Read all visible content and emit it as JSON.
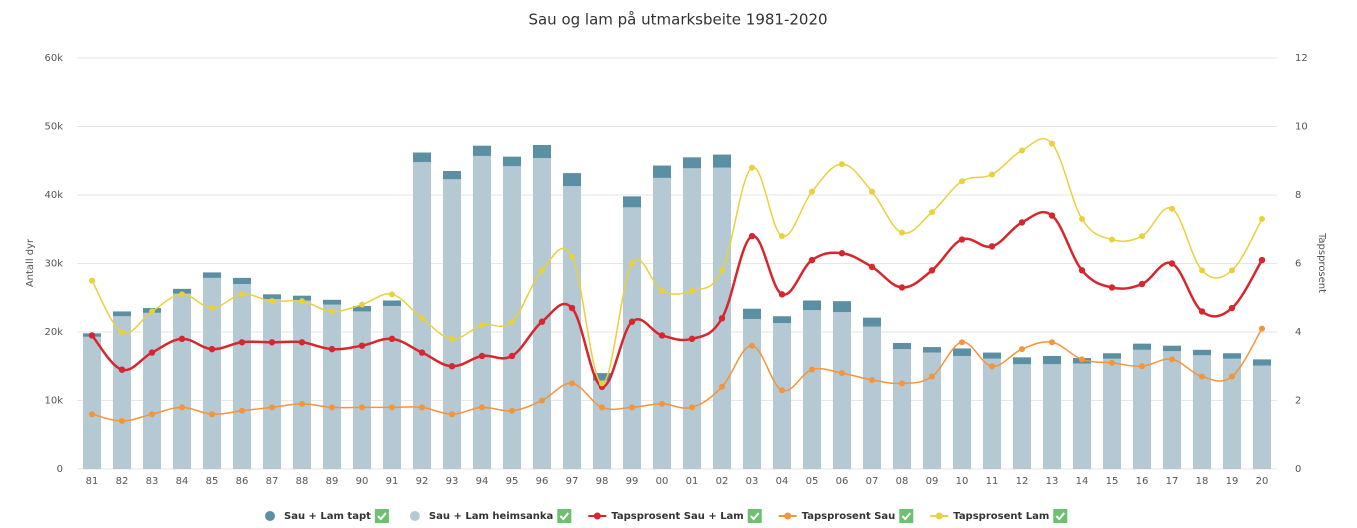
{
  "chart_data": {
    "type": "bar",
    "title": "Sau og lam på utmarksbeite 1981-2020",
    "y_label": "Antall dyr",
    "y2_label": "Tapsprosent",
    "categories": [
      "81",
      "82",
      "83",
      "84",
      "85",
      "86",
      "87",
      "88",
      "89",
      "90",
      "91",
      "92",
      "93",
      "94",
      "95",
      "96",
      "97",
      "98",
      "99",
      "00",
      "01",
      "02",
      "03",
      "04",
      "05",
      "06",
      "07",
      "08",
      "09",
      "10",
      "11",
      "12",
      "13",
      "14",
      "15",
      "16",
      "17",
      "18",
      "19",
      "20"
    ],
    "ylim": [
      0,
      60000
    ],
    "yticks": [
      0,
      {
        "value": 10000,
        "label": "10k"
      },
      {
        "value": 20000,
        "label": "20k"
      },
      {
        "value": 30000,
        "label": "30k"
      },
      {
        "value": 40000,
        "label": "40k"
      },
      {
        "value": 50000,
        "label": "50k"
      },
      {
        "value": 60000,
        "label": "60k"
      }
    ],
    "y2lim": [
      0,
      12
    ],
    "y2ticks": [
      0,
      2,
      4,
      6,
      8,
      10,
      12
    ],
    "grid": true,
    "stacked": true,
    "legend": "bottom",
    "series": [
      {
        "name": "Sau + Lam tapt",
        "type": "bar",
        "stack_order": 1,
        "color": "#5b8fa3",
        "values": [
          500,
          700,
          700,
          700,
          800,
          900,
          700,
          700,
          700,
          800,
          800,
          1400,
          1200,
          1500,
          1400,
          1900,
          1900,
          1100,
          1600,
          1800,
          1600,
          1900,
          1500,
          1000,
          1400,
          1600,
          1300,
          900,
          800,
          1100,
          900,
          1000,
          1200,
          800,
          800,
          900,
          800,
          800,
          800,
          900
        ]
      },
      {
        "name": "Sau + Lam heimsanka",
        "type": "bar",
        "stack_order": 0,
        "color": "#b4c9d3",
        "values": [
          19300,
          22300,
          22800,
          25600,
          27900,
          27000,
          24800,
          24600,
          24000,
          23000,
          23800,
          44800,
          42300,
          45700,
          44200,
          45400,
          41300,
          12900,
          38200,
          42500,
          43900,
          44000,
          21900,
          21300,
          23200,
          22900,
          20800,
          17500,
          17000,
          16500,
          16100,
          15300,
          15300,
          15400,
          16100,
          17400,
          17200,
          16600,
          16100,
          15100
        ]
      },
      {
        "name": "Tapsprosent Sau + Lam",
        "type": "line",
        "axis": "y2",
        "color": "#d7262d",
        "values": [
          3.9,
          2.9,
          3.4,
          3.8,
          3.5,
          3.7,
          3.7,
          3.7,
          3.5,
          3.6,
          3.8,
          3.4,
          3.0,
          3.3,
          3.3,
          4.3,
          4.7,
          2.4,
          4.3,
          3.9,
          3.8,
          4.4,
          6.8,
          5.1,
          6.1,
          6.3,
          5.9,
          5.3,
          5.8,
          6.7,
          6.5,
          7.2,
          7.4,
          5.8,
          5.3,
          5.4,
          6.0,
          4.6,
          4.7,
          6.1
        ]
      },
      {
        "name": "Tapsprosent Sau",
        "type": "line",
        "axis": "y2",
        "color": "#f5943a",
        "values": [
          1.6,
          1.4,
          1.6,
          1.8,
          1.6,
          1.7,
          1.8,
          1.9,
          1.8,
          1.8,
          1.8,
          1.8,
          1.6,
          1.8,
          1.7,
          2.0,
          2.5,
          1.8,
          1.8,
          1.9,
          1.8,
          2.4,
          3.6,
          2.3,
          2.9,
          2.8,
          2.6,
          2.5,
          2.7,
          3.7,
          3.0,
          3.5,
          3.7,
          3.2,
          3.1,
          3.0,
          3.2,
          2.7,
          2.7,
          4.1
        ]
      },
      {
        "name": "Tapsprosent Lam",
        "type": "line",
        "axis": "y2",
        "color": "#e8d13c",
        "values": [
          5.5,
          4.0,
          4.6,
          5.1,
          4.7,
          5.1,
          4.9,
          4.9,
          4.6,
          4.8,
          5.1,
          4.4,
          3.8,
          4.2,
          4.3,
          5.8,
          6.2,
          2.5,
          6.0,
          5.2,
          5.2,
          5.8,
          8.8,
          6.8,
          8.1,
          8.9,
          8.1,
          6.9,
          7.5,
          8.4,
          8.6,
          9.3,
          9.5,
          7.3,
          6.7,
          6.8,
          7.6,
          5.8,
          5.8,
          7.3
        ]
      }
    ]
  }
}
